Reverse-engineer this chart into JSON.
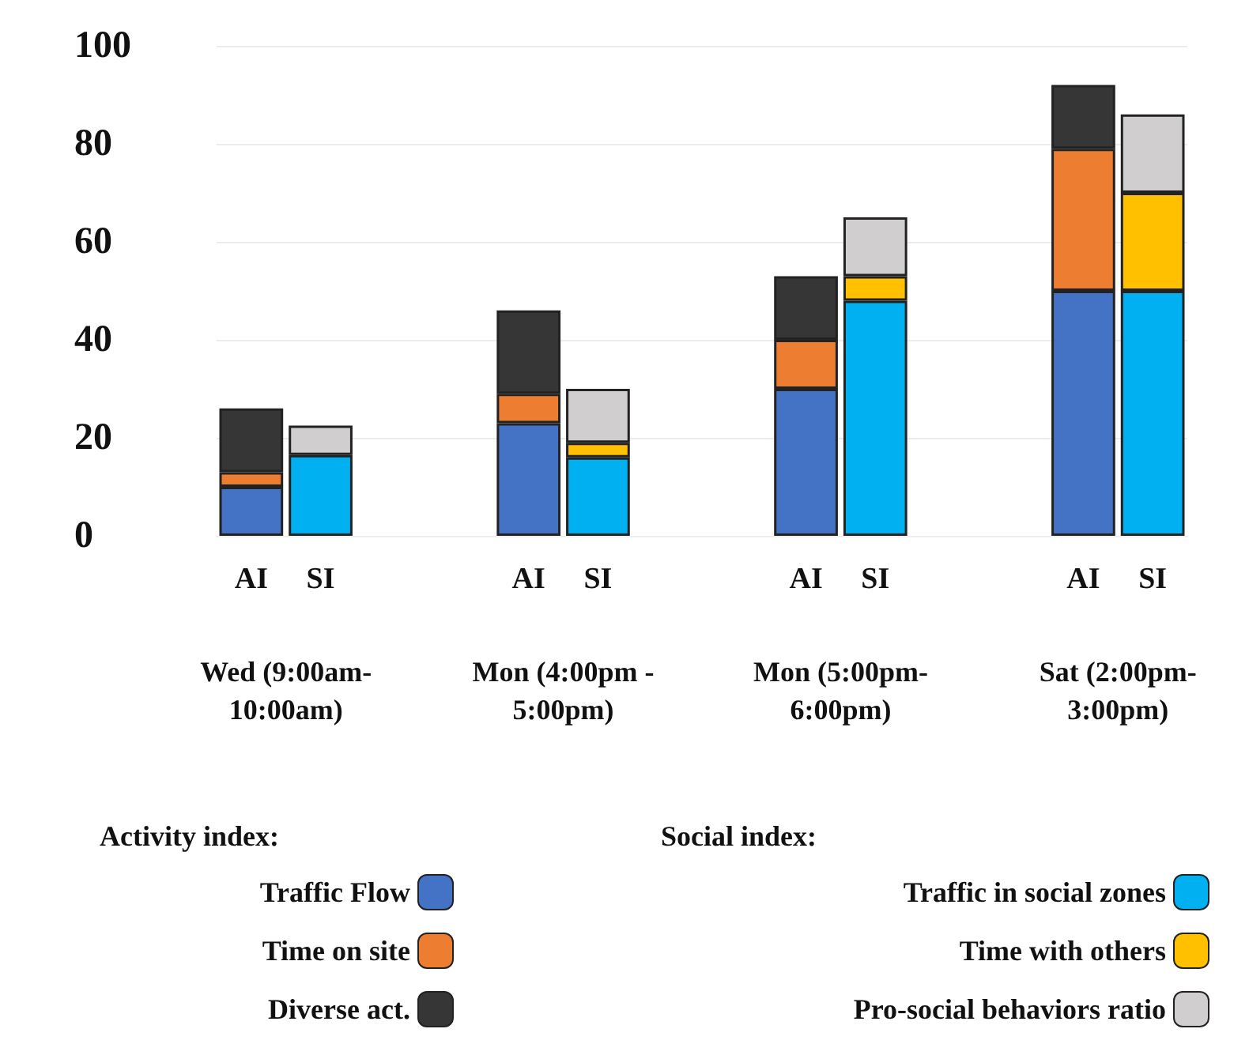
{
  "chart_data": {
    "type": "bar",
    "stacked": true,
    "categories": [
      "AI",
      "SI",
      null,
      null,
      "AI",
      "SI",
      null,
      null,
      "AI",
      "SI",
      null,
      null,
      "AI",
      "SI"
    ],
    "series": [
      {
        "name": "Traffic Flow",
        "color": "#4472c4",
        "values": [
          10,
          null,
          null,
          null,
          23,
          null,
          null,
          null,
          30,
          null,
          null,
          null,
          50,
          null
        ]
      },
      {
        "name": "Time on site",
        "color": "#ed7d31",
        "values": [
          3,
          null,
          null,
          null,
          6,
          null,
          null,
          null,
          10,
          null,
          null,
          null,
          29,
          null
        ]
      },
      {
        "name": "Diverse act.",
        "color": "#363636",
        "values": [
          13,
          null,
          null,
          null,
          17,
          null,
          null,
          null,
          13,
          null,
          null,
          null,
          13,
          null
        ]
      },
      {
        "name": "Traffic in social zones",
        "color": "#00b0f0",
        "values": [
          null,
          16.5,
          null,
          null,
          null,
          16,
          null,
          null,
          null,
          48,
          null,
          null,
          null,
          50
        ]
      },
      {
        "name": "Time with others",
        "color": "#ffc000",
        "values": [
          null,
          null,
          null,
          null,
          null,
          3,
          null,
          null,
          null,
          5,
          null,
          null,
          null,
          20
        ]
      },
      {
        "name": "Pro-social behaviors ratio",
        "color": "#d0cece",
        "values": [
          null,
          6,
          null,
          null,
          null,
          11,
          null,
          null,
          null,
          12,
          null,
          null,
          null,
          16
        ]
      }
    ],
    "annotations": [
      "Wed (9:00am-\n10:00am)",
      "Mon (4:00pm -\n5:00pm)",
      "Mon (5:00pm-\n6:00pm)",
      "Sat (2:00pm-\n3:00pm)",
      "Activity index:",
      "Social index:"
    ],
    "ylim": [
      0,
      100
    ],
    "yticks": [
      0,
      20,
      40,
      60,
      80,
      100
    ],
    "grid": "y",
    "legend": "bottom"
  }
}
